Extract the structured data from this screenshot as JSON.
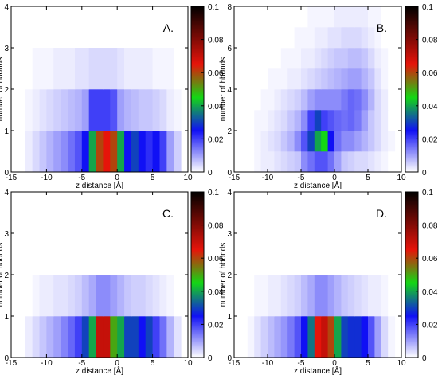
{
  "chart_data": [
    {
      "type": "heatmap",
      "panel_label": "A.",
      "xlabel": "z distance [Å]",
      "ylabel": "number of hbonds",
      "x_ticks": [
        -15,
        -10,
        -5,
        0,
        5,
        10
      ],
      "y_ticks": [
        0,
        1,
        2,
        3,
        4
      ],
      "xlim": [
        -15,
        10
      ],
      "ylim": [
        0,
        4
      ],
      "x_bin_edges": [
        -13,
        -12,
        -11,
        -10,
        -9,
        -8,
        -7,
        -6,
        -5,
        -4,
        -3,
        -2,
        -1,
        0,
        1,
        2,
        3,
        4,
        5,
        6,
        7,
        8,
        9
      ],
      "y_bin_edges": [
        0,
        1,
        2,
        3
      ],
      "values": [
        [
          0.002,
          0.004,
          0.006,
          0.008,
          0.01,
          0.012,
          0.015,
          0.018,
          0.025,
          0.04,
          0.06,
          0.065,
          0.06,
          0.04,
          0.025,
          0.03,
          0.025,
          0.022,
          0.025,
          0.02,
          0.01,
          0.005
        ],
        [
          0.001,
          0.002,
          0.003,
          0.004,
          0.005,
          0.006,
          0.007,
          0.008,
          0.01,
          0.02,
          0.02,
          0.02,
          0.018,
          0.01,
          0.008,
          0.007,
          0.006,
          0.006,
          0.005,
          0.004,
          0.002,
          0.001
        ],
        [
          0.0,
          0.001,
          0.001,
          0.001,
          0.002,
          0.002,
          0.002,
          0.003,
          0.003,
          0.004,
          0.004,
          0.004,
          0.004,
          0.003,
          0.002,
          0.002,
          0.002,
          0.002,
          0.001,
          0.001,
          0.001,
          0.0
        ]
      ],
      "colorbar": {
        "range": [
          0,
          0.1
        ],
        "ticks": [
          0,
          0.02,
          0.04,
          0.06,
          0.08,
          0.1
        ]
      }
    },
    {
      "type": "heatmap",
      "panel_label": "B.",
      "xlabel": "z distance [Å]",
      "ylabel": "number of hbonds",
      "x_ticks": [
        -15,
        -10,
        -5,
        0,
        5,
        10
      ],
      "y_ticks": [
        0,
        2,
        4,
        6,
        8
      ],
      "xlim": [
        -15,
        10
      ],
      "ylim": [
        0,
        8
      ],
      "x_bin_edges": [
        -13,
        -12,
        -11,
        -10,
        -9,
        -8,
        -7,
        -6,
        -5,
        -4,
        -3,
        -2,
        -1,
        0,
        1,
        2,
        3,
        4,
        5,
        6,
        7,
        8,
        9
      ],
      "y_bin_edges": [
        0,
        1,
        2,
        3,
        4,
        5,
        6,
        7,
        8
      ],
      "values": [
        [
          0.0,
          0.001,
          0.002,
          0.002,
          0.003,
          0.004,
          0.005,
          0.006,
          0.012,
          0.015,
          0.018,
          0.018,
          0.015,
          0.01,
          0.006,
          0.005,
          0.004,
          0.004,
          0.003,
          0.002,
          0.001,
          0.0
        ],
        [
          0.0,
          0.001,
          0.002,
          0.003,
          0.004,
          0.006,
          0.008,
          0.012,
          0.018,
          0.03,
          0.04,
          0.045,
          0.025,
          0.015,
          0.012,
          0.012,
          0.01,
          0.008,
          0.006,
          0.004,
          0.002,
          0.001
        ],
        [
          0.0,
          0.001,
          0.001,
          0.002,
          0.003,
          0.004,
          0.006,
          0.008,
          0.012,
          0.02,
          0.03,
          0.02,
          0.018,
          0.016,
          0.015,
          0.016,
          0.014,
          0.01,
          0.006,
          0.004,
          0.002,
          0.0
        ],
        [
          0.0,
          0.0,
          0.001,
          0.001,
          0.002,
          0.003,
          0.004,
          0.005,
          0.007,
          0.01,
          0.012,
          0.012,
          0.012,
          0.012,
          0.014,
          0.016,
          0.015,
          0.012,
          0.008,
          0.004,
          0.002,
          0.0
        ],
        [
          0.0,
          0.0,
          0.0,
          0.001,
          0.001,
          0.001,
          0.002,
          0.002,
          0.003,
          0.004,
          0.005,
          0.006,
          0.007,
          0.008,
          0.009,
          0.01,
          0.01,
          0.008,
          0.006,
          0.003,
          0.001,
          0.0
        ],
        [
          0.0,
          0.0,
          0.0,
          0.0,
          0.0,
          0.001,
          0.001,
          0.001,
          0.002,
          0.002,
          0.003,
          0.004,
          0.005,
          0.006,
          0.006,
          0.007,
          0.007,
          0.006,
          0.004,
          0.002,
          0.001,
          0.0
        ],
        [
          0.0,
          0.0,
          0.0,
          0.0,
          0.0,
          0.0,
          0.0,
          0.001,
          0.001,
          0.001,
          0.002,
          0.002,
          0.003,
          0.003,
          0.004,
          0.004,
          0.004,
          0.003,
          0.002,
          0.001,
          0.0,
          0.0
        ],
        [
          0.0,
          0.0,
          0.0,
          0.0,
          0.0,
          0.0,
          0.0,
          0.0,
          0.0,
          0.001,
          0.001,
          0.001,
          0.001,
          0.002,
          0.002,
          0.002,
          0.002,
          0.002,
          0.001,
          0.001,
          0.0,
          0.0
        ]
      ],
      "colorbar": {
        "range": [
          0,
          0.1
        ],
        "ticks": [
          0,
          0.02,
          0.04,
          0.06,
          0.08,
          0.1
        ]
      }
    },
    {
      "type": "heatmap",
      "panel_label": "C.",
      "xlabel": "z distance [Å]",
      "ylabel": "number of hbonds",
      "x_ticks": [
        -15,
        -10,
        -5,
        0,
        5,
        10
      ],
      "y_ticks": [
        0,
        1,
        2,
        3,
        4
      ],
      "xlim": [
        -15,
        10
      ],
      "ylim": [
        0,
        4
      ],
      "x_bin_edges": [
        -13,
        -12,
        -11,
        -10,
        -9,
        -8,
        -7,
        -6,
        -5,
        -4,
        -3,
        -2,
        -1,
        0,
        1,
        2,
        3,
        4,
        5,
        6,
        7,
        8,
        9
      ],
      "y_bin_edges": [
        0,
        1,
        2
      ],
      "values": [
        [
          0.002,
          0.004,
          0.006,
          0.008,
          0.01,
          0.013,
          0.016,
          0.02,
          0.03,
          0.04,
          0.07,
          0.07,
          0.05,
          0.04,
          0.03,
          0.03,
          0.025,
          0.03,
          0.02,
          0.015,
          0.008,
          0.003
        ],
        [
          0.0,
          0.001,
          0.002,
          0.002,
          0.003,
          0.003,
          0.004,
          0.005,
          0.007,
          0.009,
          0.012,
          0.012,
          0.01,
          0.008,
          0.006,
          0.005,
          0.005,
          0.004,
          0.003,
          0.002,
          0.001,
          0.0
        ]
      ],
      "colorbar": {
        "range": [
          0,
          0.1
        ],
        "ticks": [
          0,
          0.02,
          0.04,
          0.06,
          0.08,
          0.1
        ]
      }
    },
    {
      "type": "heatmap",
      "panel_label": "D.",
      "xlabel": "z distance [Å]",
      "ylabel": "number of hbonds",
      "x_ticks": [
        -15,
        -10,
        -5,
        0,
        5,
        10
      ],
      "y_ticks": [
        0,
        1,
        2,
        3,
        4
      ],
      "xlim": [
        -15,
        10
      ],
      "ylim": [
        0,
        4
      ],
      "x_bin_edges": [
        -13,
        -12,
        -11,
        -10,
        -9,
        -8,
        -7,
        -6,
        -5,
        -4,
        -3,
        -2,
        -1,
        0,
        1,
        2,
        3,
        4,
        5,
        6,
        7,
        8,
        9
      ],
      "y_bin_edges": [
        0,
        1,
        2
      ],
      "values": [
        [
          0.001,
          0.003,
          0.005,
          0.007,
          0.009,
          0.011,
          0.014,
          0.018,
          0.025,
          0.035,
          0.065,
          0.07,
          0.06,
          0.04,
          0.03,
          0.028,
          0.028,
          0.025,
          0.018,
          0.01,
          0.004,
          0.001
        ],
        [
          0.0,
          0.001,
          0.001,
          0.002,
          0.002,
          0.003,
          0.004,
          0.005,
          0.007,
          0.009,
          0.012,
          0.012,
          0.01,
          0.008,
          0.006,
          0.005,
          0.004,
          0.003,
          0.002,
          0.002,
          0.001,
          0.0
        ]
      ],
      "colorbar": {
        "range": [
          0,
          0.1
        ],
        "ticks": [
          0,
          0.02,
          0.04,
          0.06,
          0.08,
          0.1
        ]
      }
    }
  ]
}
